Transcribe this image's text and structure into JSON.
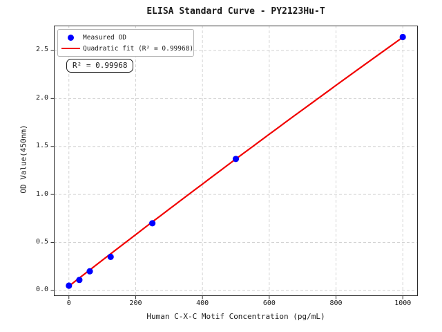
{
  "chart_data": {
    "type": "scatter",
    "title": "ELISA Standard Curve - PY2123Hu-T",
    "xlabel": "Human C-X-C Motif Concentration (pg/mL)",
    "ylabel": "OD Value(450nm)",
    "xlim": [
      -45,
      1045
    ],
    "ylim": [
      -0.058,
      2.759
    ],
    "grid": true,
    "legend_position": "upper-left",
    "xticks": {
      "values": [
        0,
        200,
        400,
        600,
        800,
        1000
      ],
      "labels": [
        "0",
        "200",
        "400",
        "600",
        "800",
        "1000"
      ]
    },
    "yticks": {
      "values": [
        0,
        0.5,
        1.0,
        1.5,
        2.0,
        2.5
      ],
      "labels": [
        "0.0",
        "0.5",
        "1.0",
        "1.5",
        "2.0",
        "2.5"
      ]
    },
    "series": [
      {
        "name": "Measured OD",
        "kind": "scatter",
        "color": "#0000ff",
        "marker": "circle",
        "x": [
          0,
          31.25,
          62.5,
          125,
          250,
          500,
          1000
        ],
        "y": [
          0.05,
          0.11,
          0.2,
          0.35,
          0.7,
          1.37,
          2.64
        ]
      },
      {
        "name": "Quadratic fit (R² = 0.99968)",
        "kind": "quadratic-fit-line",
        "color": "#f10000",
        "coefficients": {
          "a": -1.12e-07,
          "b": 0.002704,
          "c": 0.045
        },
        "x_range": [
          0,
          1000
        ]
      }
    ],
    "r_squared": 0.99968
  },
  "legend": {
    "items": [
      {
        "label": "Measured OD",
        "marker": "dot",
        "color": "#0000ff"
      },
      {
        "label": "Quadratic fit (R² = 0.99968)",
        "marker": "line",
        "color": "#f10000"
      }
    ]
  },
  "annotation_box": {
    "text": "R² = 0.99968"
  },
  "colors": {
    "marker_blue": "#0000ff",
    "fit_red": "#f10000",
    "gridline": "#d2d2d2",
    "spine": "#2b2b2b",
    "background": "#ffffff"
  }
}
